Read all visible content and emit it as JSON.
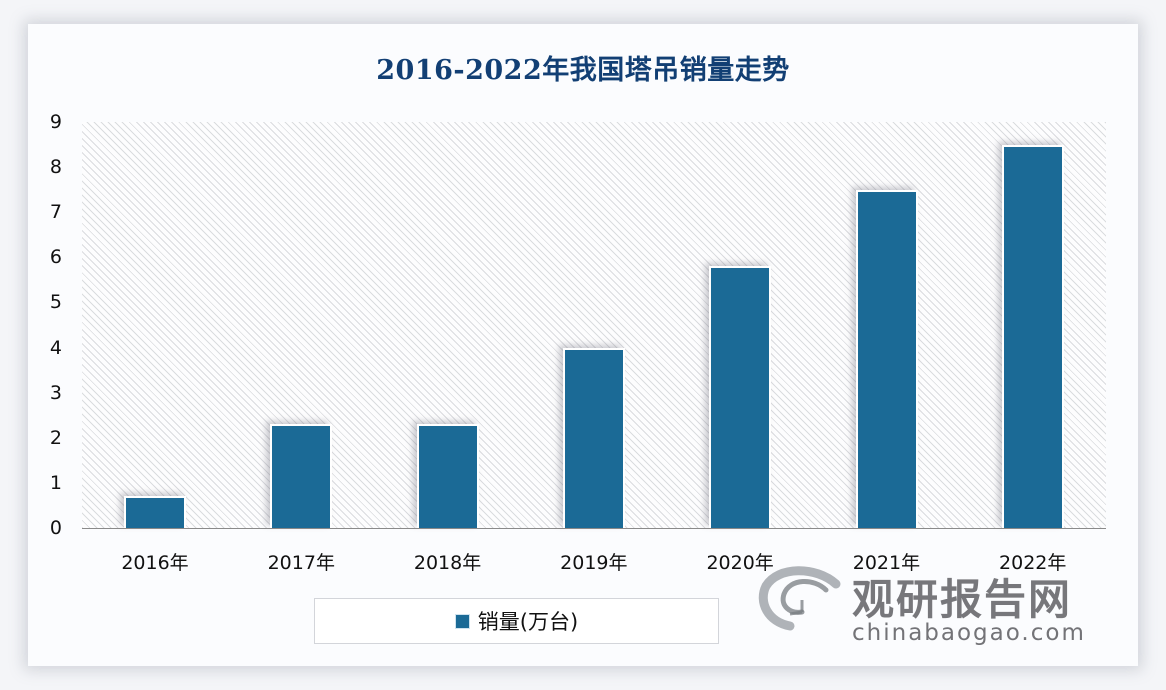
{
  "chart_data": {
    "type": "bar",
    "title": "2016-2022年我国塔吊销量走势",
    "categories": [
      "2016年",
      "2017年",
      "2018年",
      "2019年",
      "2020年",
      "2021年",
      "2022年"
    ],
    "series": [
      {
        "name": "销量(万台)",
        "values": [
          0.7,
          2.3,
          2.3,
          4.0,
          5.8,
          7.5,
          8.5
        ],
        "color": "#1b6a96"
      }
    ],
    "xlabel": "",
    "ylabel": "",
    "ylim": [
      0,
      9
    ],
    "yticks": [
      "0",
      "1",
      "2",
      "3",
      "4",
      "5",
      "6",
      "7",
      "8",
      "9"
    ],
    "grid": false,
    "legend_position": "bottom"
  },
  "title": "2016-2022年我国塔吊销量走势",
  "legend": {
    "label": "销量(万台)"
  },
  "watermark": {
    "name": "观研报告网",
    "url": "chinabaogao.com"
  }
}
